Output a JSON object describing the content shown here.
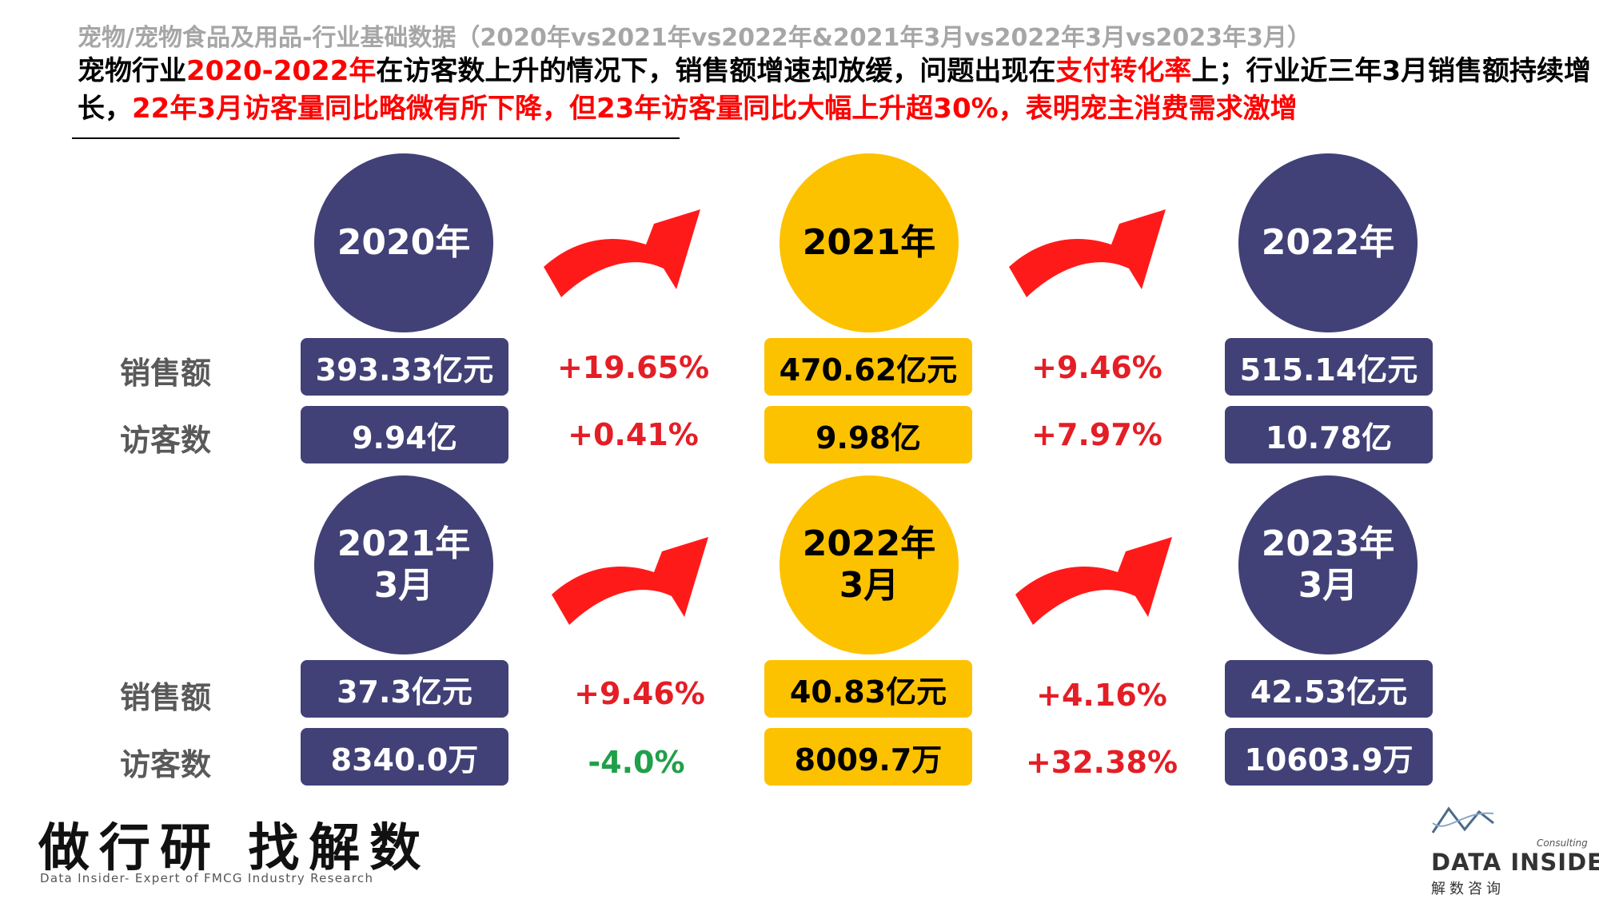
{
  "header": {
    "subtitle": "宠物/宠物食品及用品-行业基础数据（2020年vs2021年vs2022年&2021年3月vs2022年3月vs2023年3月）",
    "headline": {
      "p1": "宠物行业",
      "p2": "2020-2022年",
      "p3": "在访客数上升的情况下，销售额增速却放缓，问题出现在",
      "p4": "支付转化率",
      "p5": "上；行业近三年3月销售额持续增长，",
      "p6": "22年3月访客量同比略微有所下降，但23年访客量同比大幅上升超30%，表明宠主消费需求激增"
    }
  },
  "labels": {
    "sales": "销售额",
    "visitors": "访客数"
  },
  "annual": {
    "periods": [
      {
        "label": "2020年",
        "sales": "393.33亿元",
        "visitors": "9.94亿",
        "color": "#414177"
      },
      {
        "label": "2021年",
        "sales": "470.62亿元",
        "visitors": "9.98亿",
        "color": "#fcc200"
      },
      {
        "label": "2022年",
        "sales": "515.14亿元",
        "visitors": "10.78亿",
        "color": "#414177"
      }
    ],
    "changes": [
      {
        "sales": "+19.65%",
        "visitors": "+0.41%"
      },
      {
        "sales": "+9.46%",
        "visitors": "+7.97%"
      }
    ]
  },
  "march": {
    "periods": [
      {
        "label_year": "2021年",
        "label_month": "3月",
        "sales": "37.3亿元",
        "visitors": "8340.0万",
        "color": "#414177"
      },
      {
        "label_year": "2022年",
        "label_month": "3月",
        "sales": "40.83亿元",
        "visitors": "8009.7万",
        "color": "#fcc200"
      },
      {
        "label_year": "2023年",
        "label_month": "3月",
        "sales": "42.53亿元",
        "visitors": "10603.9万",
        "color": "#414177"
      }
    ],
    "changes": [
      {
        "sales": "+9.46%",
        "visitors": "-4.0%"
      },
      {
        "sales": "+4.16%",
        "visitors": "+32.38%"
      }
    ]
  },
  "colors": {
    "navy": "#414177",
    "gold": "#fcc200",
    "red": "#e41e26",
    "green": "#1fa04a",
    "arrow": "#ff1a1a"
  },
  "footer": {
    "slogan": "做行研 找解数",
    "slogan_en": "Data Insider- Expert of FMCG Industry Research",
    "logo_small": "Consulting",
    "logo_name": "DATA INSIDER",
    "logo_cn": "解数咨询",
    "logo_icon": "wave-logo-icon"
  }
}
